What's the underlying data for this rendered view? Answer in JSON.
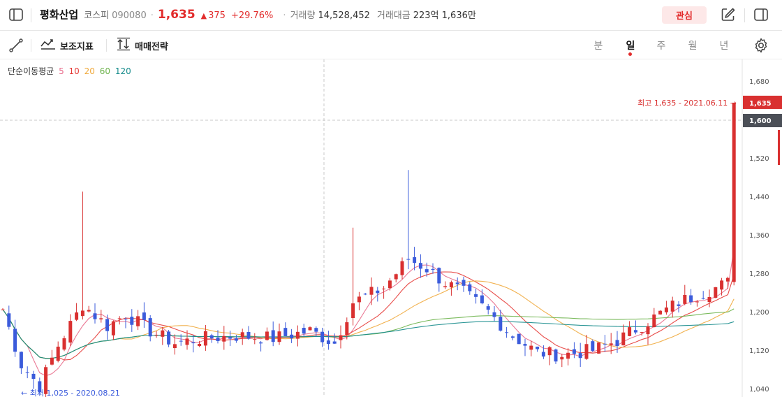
{
  "stock": {
    "name": "평화산업",
    "market": "코스피",
    "code": "090080",
    "price": "1,635",
    "change": "375",
    "change_pct": "+29.76%",
    "volume_label": "거래량",
    "volume": "14,528,452",
    "amount_label": "거래대금",
    "amount": "223억 1,636만"
  },
  "header": {
    "favorite_label": "관심",
    "icons": [
      "sidebar-icon",
      "edit-icon",
      "panel-icon"
    ]
  },
  "toolbar": {
    "indicator_label": "보조지표",
    "trade_label": "매매전략",
    "periods": [
      "분",
      "일",
      "주",
      "월",
      "년"
    ],
    "active_period": "일"
  },
  "legend": {
    "title": "단순이동평균",
    "items": [
      {
        "label": "5",
        "color": "#e86a8a"
      },
      {
        "label": "10",
        "color": "#e53935"
      },
      {
        "label": "20",
        "color": "#f0a93b"
      },
      {
        "label": "60",
        "color": "#6bb24a"
      },
      {
        "label": "120",
        "color": "#138a8a"
      }
    ]
  },
  "chart_data": {
    "type": "candlestick",
    "y_ticks": [
      "1,680",
      "1,520",
      "1,440",
      "1,360",
      "1,280",
      "1,200",
      "1,120",
      "1,040"
    ],
    "current_price_label": "1,635",
    "crosshair_price_label": "1,600",
    "high_annotation": "최고 1,635 - 2021.06.11",
    "low_annotation": "최저 1,025 - 2020.08.21",
    "up_color": "#d93030",
    "down_color": "#3b5bdb",
    "ylim": [
      1030,
      1690
    ]
  }
}
